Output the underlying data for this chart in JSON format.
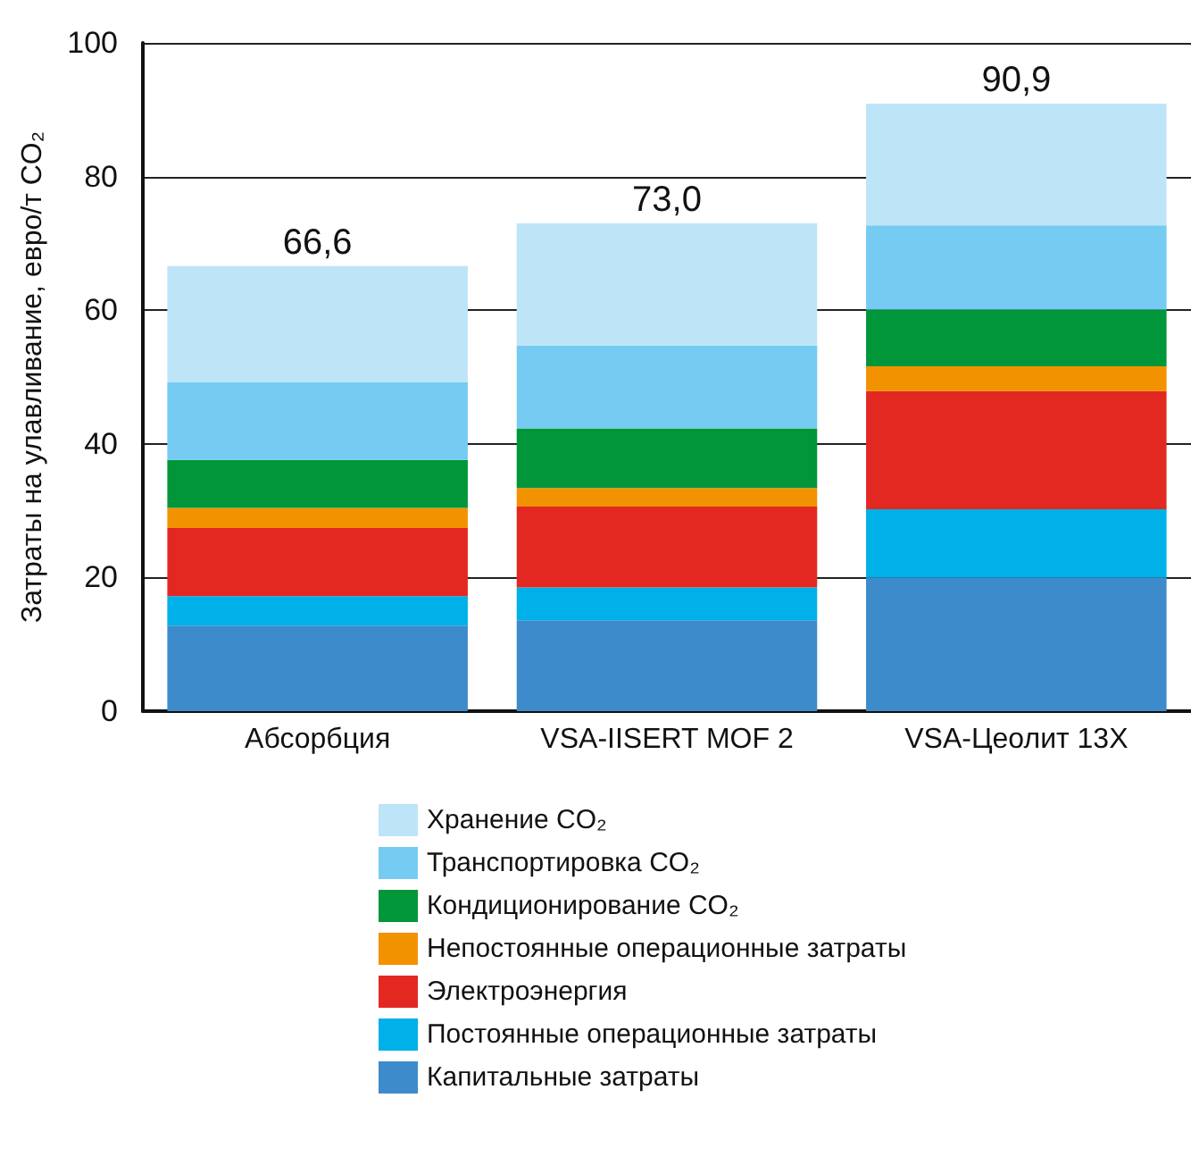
{
  "chart_data": {
    "type": "bar",
    "stacked": true,
    "ylabel": "Затраты на улавливание, евро/т CO₂",
    "categories": [
      "Абсорбция",
      "VSA-IISERT MOF 2",
      "VSA-Цеолит 13X"
    ],
    "series": [
      {
        "name": "Капитальные затраты",
        "color": "#3d8bcb",
        "values": [
          12.8,
          13.6,
          20.0
        ]
      },
      {
        "name": "Постоянные операционные затраты",
        "color": "#00b0e8",
        "values": [
          4.4,
          4.9,
          10.2
        ]
      },
      {
        "name": "Электроэнергия",
        "color": "#e32822",
        "values": [
          10.2,
          12.1,
          17.7
        ]
      },
      {
        "name": "Непостоянные операционные затраты",
        "color": "#f39200",
        "values": [
          3.0,
          2.8,
          3.7
        ]
      },
      {
        "name": "Кондиционирование CO₂",
        "color": "#009639",
        "values": [
          7.2,
          8.9,
          8.5
        ]
      },
      {
        "name": "Транспортировка CO₂",
        "color": "#75cbf2",
        "values": [
          11.6,
          12.4,
          12.6
        ]
      },
      {
        "name": "Хранение CO₂",
        "color": "#bee4f8",
        "values": [
          17.4,
          18.3,
          18.2
        ]
      }
    ],
    "totals": [
      "66,6",
      "73,0",
      "90,9"
    ],
    "ylim": [
      0,
      100
    ],
    "yticks": [
      0,
      20,
      40,
      60,
      80,
      100
    ],
    "grid": "y",
    "legend": "bottom"
  }
}
